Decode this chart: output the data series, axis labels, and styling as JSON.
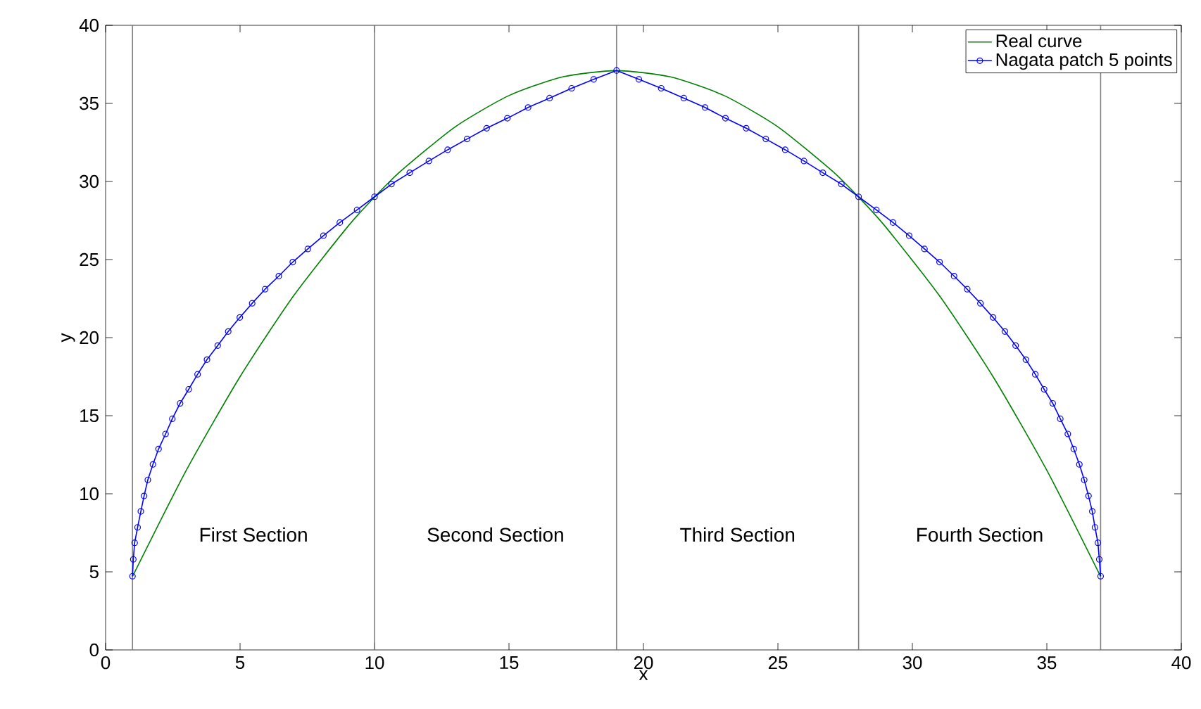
{
  "chart_data": {
    "type": "line",
    "xlabel": "x",
    "ylabel": "y",
    "xlim": [
      0,
      40
    ],
    "ylim": [
      0,
      40
    ],
    "xticks": [
      0,
      5,
      10,
      15,
      20,
      25,
      30,
      35,
      40
    ],
    "yticks": [
      0,
      5,
      10,
      15,
      20,
      25,
      30,
      35,
      40
    ],
    "grid": false,
    "legend": "top right",
    "series": [
      {
        "name": "Real curve",
        "color": "#008000",
        "marker": "none",
        "x": [
          1,
          3,
          5,
          7,
          9,
          10,
          11,
          13,
          15,
          17,
          19,
          21,
          23,
          25,
          27,
          28,
          29,
          31,
          33,
          35,
          37
        ],
        "values": [
          4.7,
          11.5,
          17.5,
          22.7,
          27.1,
          29.0,
          30.7,
          33.5,
          35.5,
          36.7,
          37.1,
          36.7,
          35.5,
          33.5,
          30.7,
          29.0,
          27.1,
          22.7,
          17.5,
          11.5,
          4.7
        ]
      },
      {
        "name": "Nagata patch 5 points",
        "color": "#0000ff",
        "marker": "circle",
        "x": [
          1.0,
          1.03,
          1.08,
          1.19,
          1.31,
          1.43,
          1.57,
          1.76,
          1.97,
          2.23,
          2.48,
          2.77,
          3.09,
          3.42,
          3.77,
          4.17,
          4.56,
          4.99,
          5.45,
          5.93,
          6.44,
          6.96,
          7.52,
          8.1,
          8.71,
          9.35,
          10.0,
          10.63,
          11.31,
          12.02,
          12.72,
          13.44,
          14.17,
          14.94,
          15.71,
          16.51,
          17.33,
          18.15,
          19.0,
          19.83,
          20.66,
          21.5,
          22.29,
          23.05,
          23.82,
          24.55,
          25.27,
          25.97,
          26.67,
          27.36,
          28.0,
          28.66,
          29.28,
          29.88,
          30.45,
          31.01,
          31.55,
          32.04,
          32.53,
          33.0,
          33.44,
          33.84,
          34.22,
          34.57,
          34.9,
          35.22,
          35.5,
          35.78,
          36.0,
          36.21,
          36.39,
          36.55,
          36.69,
          36.79,
          36.9,
          36.95,
          37.0
        ],
        "values": [
          4.72,
          5.8,
          6.86,
          7.85,
          8.87,
          9.86,
          10.89,
          11.88,
          12.87,
          13.83,
          14.8,
          15.79,
          16.69,
          17.65,
          18.59,
          19.49,
          20.39,
          21.29,
          22.2,
          23.1,
          23.94,
          24.84,
          25.68,
          26.53,
          27.37,
          28.18,
          29.02,
          29.83,
          30.56,
          31.31,
          32.03,
          32.72,
          33.41,
          34.05,
          34.74,
          35.34,
          35.97,
          36.54,
          37.11,
          36.54,
          35.97,
          35.34,
          34.74,
          34.05,
          33.41,
          32.72,
          32.03,
          31.31,
          30.56,
          29.83,
          29.02,
          28.18,
          27.37,
          26.53,
          25.68,
          24.84,
          23.94,
          23.1,
          22.2,
          21.29,
          20.39,
          19.49,
          18.59,
          17.65,
          16.69,
          15.79,
          14.8,
          13.83,
          12.87,
          11.88,
          10.89,
          9.86,
          8.87,
          7.85,
          6.86,
          5.8,
          4.72
        ]
      }
    ],
    "ref_lines": [
      {
        "axis": "x",
        "value": 1,
        "color": "#808080"
      },
      {
        "axis": "x",
        "value": 10,
        "color": "#808080"
      },
      {
        "axis": "x",
        "value": 19,
        "color": "#808080"
      },
      {
        "axis": "x",
        "value": 28,
        "color": "#808080"
      },
      {
        "axis": "x",
        "value": 37,
        "color": "#808080"
      }
    ],
    "annotations": [
      "First Section",
      "Second Section",
      "Third Section",
      "Fourth Section"
    ]
  }
}
